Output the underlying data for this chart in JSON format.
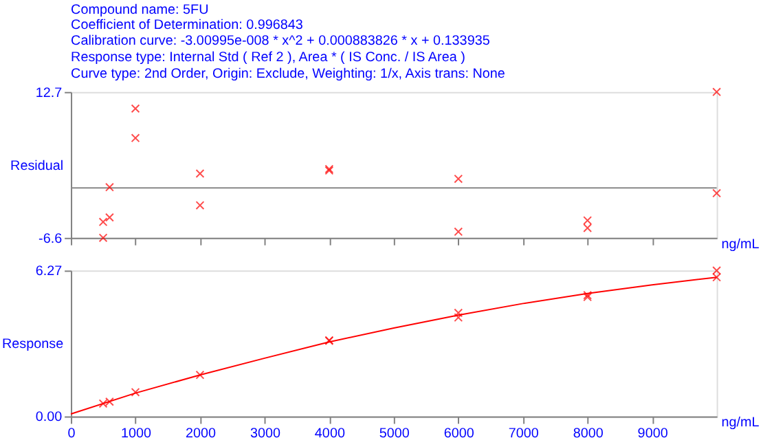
{
  "chart_data": [
    {
      "type": "scatter",
      "title": "Compound name: 5FU",
      "annotations": [
        "Coefficient of Determination: 0.996843",
        "Calibration curve: -3.00995e-008 * x^2 + 0.000883826 * x + 0.133935",
        "Response type: Internal Std ( Ref 2 ), Area * ( IS Conc. / IS Area )",
        "Curve type: 2nd Order, Origin: Exclude, Weighting: 1/x, Axis trans: None"
      ],
      "ylabel": "Residual",
      "xlabel": "ng/mL",
      "x": [
        500,
        500,
        600,
        600,
        1000,
        1000,
        2000,
        2000,
        4000,
        4000,
        6000,
        6000,
        8000,
        8000,
        10000,
        10000
      ],
      "values": [
        -4.5,
        -6.6,
        0.1,
        -3.9,
        10.5,
        6.6,
        1.9,
        -2.3,
        2.5,
        2.3,
        1.2,
        -5.8,
        -4.3,
        -5.3,
        12.7,
        -0.7
      ],
      "color": "#ff0000",
      "marker": "cross",
      "xlim": [
        0,
        10000
      ],
      "xticks": [
        0,
        1000,
        2000,
        3000,
        4000,
        5000,
        6000,
        7000,
        8000,
        9000
      ],
      "ylim": [
        -6.6,
        12.7
      ],
      "yticks": [
        -6.6,
        12.7
      ],
      "tick_labels": "y",
      "ref_lines": [
        {
          "axis": "y",
          "value": 0,
          "color": "#888888"
        }
      ],
      "grid": false
    },
    {
      "type": "scatter",
      "ylabel": "Response",
      "xlabel": "ng/mL",
      "series": [
        {
          "type": "scatter",
          "color": "#ff0000",
          "marker": "cross",
          "x": [
            500,
            600,
            1000,
            2000,
            4000,
            4000,
            6000,
            6000,
            8000,
            8000,
            10000,
            10000
          ],
          "values": [
            0.55,
            0.63,
            1.04,
            1.78,
            3.27,
            3.25,
            4.45,
            4.25,
            5.21,
            5.13,
            6.27,
            5.98
          ]
        },
        {
          "type": "line",
          "color": "#ff0000",
          "x": [
            0,
            1000,
            2000,
            3000,
            4000,
            5000,
            6000,
            7000,
            8000,
            9000,
            10000
          ],
          "values": [
            0.1,
            1.0,
            1.78,
            2.5,
            3.2,
            3.8,
            4.35,
            4.85,
            5.28,
            5.65,
            5.98
          ]
        }
      ],
      "xlim": [
        0,
        10000
      ],
      "xticks": [
        0,
        1000,
        2000,
        3000,
        4000,
        5000,
        6000,
        7000,
        8000,
        9000
      ],
      "ylim": [
        0,
        6.27
      ],
      "yticks": [
        {
          "value": 0,
          "label": "0.00"
        },
        6.27
      ],
      "grid": false
    }
  ]
}
